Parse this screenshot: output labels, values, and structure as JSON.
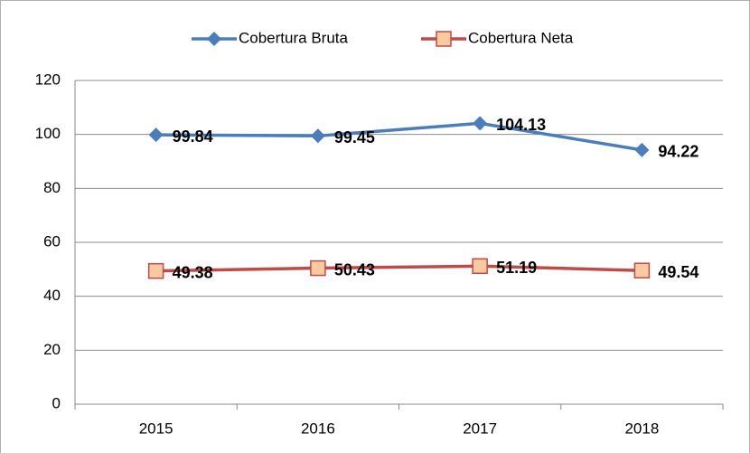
{
  "chart_data": {
    "type": "line",
    "categories": [
      "2015",
      "2016",
      "2017",
      "2018"
    ],
    "series": [
      {
        "name": "Cobertura Bruta",
        "color": "#4a7ebb",
        "marker": "diamond",
        "values": [
          99.84,
          99.45,
          104.13,
          94.22
        ]
      },
      {
        "name": "Cobertura Neta",
        "color": "#be4b48",
        "marker": "square",
        "marker_fill": "#f9c9a0",
        "values": [
          49.38,
          50.43,
          51.19,
          49.54
        ]
      }
    ],
    "ylim": [
      0,
      120
    ],
    "yticks": [
      0,
      20,
      40,
      60,
      80,
      100,
      120
    ],
    "grid": true,
    "legend": "top"
  }
}
